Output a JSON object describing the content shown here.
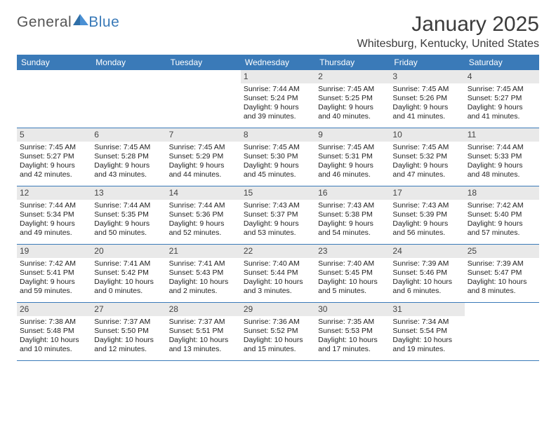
{
  "logo": {
    "text1": "General",
    "text2": "Blue"
  },
  "title": "January 2025",
  "location": "Whitesburg, Kentucky, United States",
  "colors": {
    "header_bg": "#3a7ab8",
    "cell_num_bg": "#e9e9e9",
    "text": "#222222",
    "rule": "#3a7ab8"
  },
  "day_names": [
    "Sunday",
    "Monday",
    "Tuesday",
    "Wednesday",
    "Thursday",
    "Friday",
    "Saturday"
  ],
  "weeks": [
    [
      null,
      null,
      null,
      {
        "n": "1",
        "sr": "7:44 AM",
        "ss": "5:24 PM",
        "dl": "9 hours and 39 minutes."
      },
      {
        "n": "2",
        "sr": "7:45 AM",
        "ss": "5:25 PM",
        "dl": "9 hours and 40 minutes."
      },
      {
        "n": "3",
        "sr": "7:45 AM",
        "ss": "5:26 PM",
        "dl": "9 hours and 41 minutes."
      },
      {
        "n": "4",
        "sr": "7:45 AM",
        "ss": "5:27 PM",
        "dl": "9 hours and 41 minutes."
      }
    ],
    [
      {
        "n": "5",
        "sr": "7:45 AM",
        "ss": "5:27 PM",
        "dl": "9 hours and 42 minutes."
      },
      {
        "n": "6",
        "sr": "7:45 AM",
        "ss": "5:28 PM",
        "dl": "9 hours and 43 minutes."
      },
      {
        "n": "7",
        "sr": "7:45 AM",
        "ss": "5:29 PM",
        "dl": "9 hours and 44 minutes."
      },
      {
        "n": "8",
        "sr": "7:45 AM",
        "ss": "5:30 PM",
        "dl": "9 hours and 45 minutes."
      },
      {
        "n": "9",
        "sr": "7:45 AM",
        "ss": "5:31 PM",
        "dl": "9 hours and 46 minutes."
      },
      {
        "n": "10",
        "sr": "7:45 AM",
        "ss": "5:32 PM",
        "dl": "9 hours and 47 minutes."
      },
      {
        "n": "11",
        "sr": "7:44 AM",
        "ss": "5:33 PM",
        "dl": "9 hours and 48 minutes."
      }
    ],
    [
      {
        "n": "12",
        "sr": "7:44 AM",
        "ss": "5:34 PM",
        "dl": "9 hours and 49 minutes."
      },
      {
        "n": "13",
        "sr": "7:44 AM",
        "ss": "5:35 PM",
        "dl": "9 hours and 50 minutes."
      },
      {
        "n": "14",
        "sr": "7:44 AM",
        "ss": "5:36 PM",
        "dl": "9 hours and 52 minutes."
      },
      {
        "n": "15",
        "sr": "7:43 AM",
        "ss": "5:37 PM",
        "dl": "9 hours and 53 minutes."
      },
      {
        "n": "16",
        "sr": "7:43 AM",
        "ss": "5:38 PM",
        "dl": "9 hours and 54 minutes."
      },
      {
        "n": "17",
        "sr": "7:43 AM",
        "ss": "5:39 PM",
        "dl": "9 hours and 56 minutes."
      },
      {
        "n": "18",
        "sr": "7:42 AM",
        "ss": "5:40 PM",
        "dl": "9 hours and 57 minutes."
      }
    ],
    [
      {
        "n": "19",
        "sr": "7:42 AM",
        "ss": "5:41 PM",
        "dl": "9 hours and 59 minutes."
      },
      {
        "n": "20",
        "sr": "7:41 AM",
        "ss": "5:42 PM",
        "dl": "10 hours and 0 minutes."
      },
      {
        "n": "21",
        "sr": "7:41 AM",
        "ss": "5:43 PM",
        "dl": "10 hours and 2 minutes."
      },
      {
        "n": "22",
        "sr": "7:40 AM",
        "ss": "5:44 PM",
        "dl": "10 hours and 3 minutes."
      },
      {
        "n": "23",
        "sr": "7:40 AM",
        "ss": "5:45 PM",
        "dl": "10 hours and 5 minutes."
      },
      {
        "n": "24",
        "sr": "7:39 AM",
        "ss": "5:46 PM",
        "dl": "10 hours and 6 minutes."
      },
      {
        "n": "25",
        "sr": "7:39 AM",
        "ss": "5:47 PM",
        "dl": "10 hours and 8 minutes."
      }
    ],
    [
      {
        "n": "26",
        "sr": "7:38 AM",
        "ss": "5:48 PM",
        "dl": "10 hours and 10 minutes."
      },
      {
        "n": "27",
        "sr": "7:37 AM",
        "ss": "5:50 PM",
        "dl": "10 hours and 12 minutes."
      },
      {
        "n": "28",
        "sr": "7:37 AM",
        "ss": "5:51 PM",
        "dl": "10 hours and 13 minutes."
      },
      {
        "n": "29",
        "sr": "7:36 AM",
        "ss": "5:52 PM",
        "dl": "10 hours and 15 minutes."
      },
      {
        "n": "30",
        "sr": "7:35 AM",
        "ss": "5:53 PM",
        "dl": "10 hours and 17 minutes."
      },
      {
        "n": "31",
        "sr": "7:34 AM",
        "ss": "5:54 PM",
        "dl": "10 hours and 19 minutes."
      },
      null
    ]
  ],
  "labels": {
    "sunrise": "Sunrise: ",
    "sunset": "Sunset: ",
    "daylight": "Daylight: "
  }
}
